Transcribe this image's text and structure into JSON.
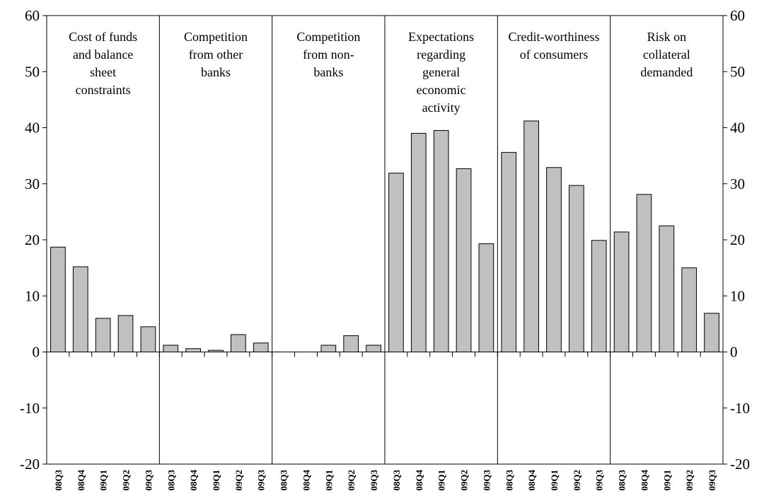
{
  "chart_data": {
    "type": "bar",
    "title": "",
    "xlabel": "",
    "ylabel": "",
    "ylim": [
      -20,
      60
    ],
    "yticks": [
      -20,
      -10,
      0,
      10,
      20,
      30,
      40,
      50,
      60
    ],
    "y_axis_both_sides": true,
    "grid": false,
    "legend": "none",
    "bar_color": "#c0c0c0",
    "bar_edge_color": "#000000",
    "categories": [
      "08Q3",
      "08Q4",
      "09Q1",
      "09Q2",
      "09Q3"
    ],
    "panels": [
      {
        "title_lines": [
          "Cost of funds",
          "and balance",
          "sheet",
          "constraints"
        ],
        "values": [
          18.7,
          15.2,
          6.0,
          6.5,
          4.5
        ]
      },
      {
        "title_lines": [
          "Competition",
          "from other",
          "banks"
        ],
        "values": [
          1.2,
          0.6,
          0.3,
          3.1,
          1.6
        ]
      },
      {
        "title_lines": [
          "Competition",
          "from non-",
          "banks"
        ],
        "values": [
          0.0,
          0.0,
          1.2,
          2.9,
          1.2
        ]
      },
      {
        "title_lines": [
          "Expectations",
          "regarding",
          "general",
          "economic",
          "activity"
        ],
        "values": [
          31.9,
          39.0,
          39.5,
          32.7,
          19.3
        ]
      },
      {
        "title_lines": [
          "Credit-worthiness",
          "of consumers"
        ],
        "values": [
          35.6,
          41.2,
          32.9,
          29.7,
          19.9
        ]
      },
      {
        "title_lines": [
          "Risk on",
          "collateral",
          "demanded"
        ],
        "values": [
          21.4,
          28.1,
          22.5,
          15.0,
          6.9
        ]
      }
    ]
  }
}
